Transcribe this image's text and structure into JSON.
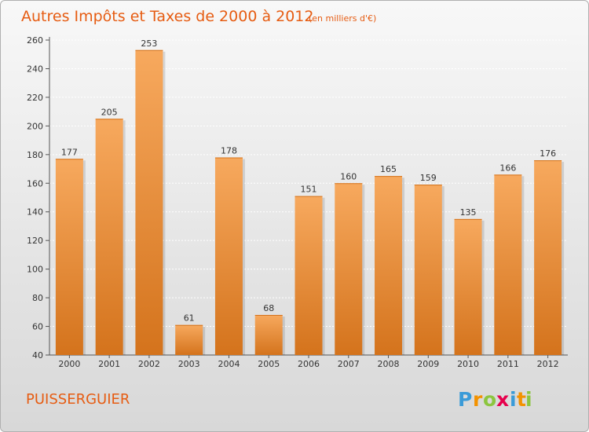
{
  "chart_data": {
    "type": "bar",
    "title": "Autres Impôts et Taxes de 2000 à 2012",
    "subtitle": "(en milliers d'€)",
    "categories": [
      "2000",
      "2001",
      "2002",
      "2003",
      "2004",
      "2005",
      "2006",
      "2007",
      "2008",
      "2009",
      "2010",
      "2011",
      "2012"
    ],
    "values": [
      177,
      205,
      253,
      61,
      178,
      68,
      151,
      160,
      165,
      159,
      135,
      166,
      176
    ],
    "xlabel": "",
    "ylabel": "",
    "ylim": [
      40,
      260
    ],
    "yticks": [
      40,
      60,
      80,
      100,
      120,
      140,
      160,
      180,
      200,
      220,
      240,
      260
    ],
    "grid": true,
    "bar_color": "#f28a2e",
    "bar_dark_color": "#d4731c",
    "bar_light_color": "#f7a95e"
  },
  "footer": {
    "commune": "PUISSERGUIER",
    "logo_letters": [
      "P",
      "r",
      "o",
      "x",
      "i",
      "t",
      "i"
    ],
    "logo_colors": [
      "#3a9bd8",
      "#f39200",
      "#8cc63f",
      "#e6004c",
      "#3a9bd8",
      "#f39200",
      "#8cc63f"
    ]
  }
}
